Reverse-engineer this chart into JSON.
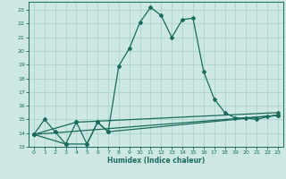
{
  "xlabel": "Humidex (Indice chaleur)",
  "background_color": "#cde8e4",
  "grid_color": "#aad4cc",
  "line_color": "#1a6b5a",
  "xlim": [
    -0.5,
    23.5
  ],
  "ylim": [
    13,
    23.6
  ],
  "xticks": [
    0,
    1,
    2,
    3,
    4,
    5,
    6,
    7,
    8,
    9,
    10,
    11,
    12,
    13,
    14,
    15,
    16,
    17,
    18,
    19,
    20,
    21,
    22,
    23
  ],
  "yticks": [
    13,
    14,
    15,
    16,
    17,
    18,
    19,
    20,
    21,
    22,
    23
  ],
  "series": [
    [
      0,
      13.9
    ],
    [
      1,
      15.0
    ],
    [
      2,
      14.1
    ],
    [
      3,
      13.2
    ],
    [
      4,
      14.8
    ],
    [
      5,
      13.2
    ],
    [
      6,
      14.8
    ],
    [
      7,
      14.1
    ],
    [
      8,
      18.9
    ],
    [
      9,
      20.2
    ],
    [
      10,
      22.1
    ],
    [
      11,
      23.2
    ],
    [
      12,
      22.6
    ],
    [
      13,
      21.0
    ],
    [
      14,
      22.3
    ],
    [
      15,
      22.4
    ],
    [
      16,
      18.5
    ],
    [
      17,
      16.5
    ],
    [
      18,
      15.5
    ],
    [
      19,
      15.1
    ],
    [
      20,
      15.1
    ],
    [
      21,
      15.0
    ],
    [
      22,
      15.2
    ],
    [
      23,
      15.3
    ]
  ],
  "line2": [
    [
      0,
      13.9
    ],
    [
      23,
      15.3
    ]
  ],
  "line3": [
    [
      0,
      13.9
    ],
    [
      4,
      14.8
    ],
    [
      23,
      15.5
    ]
  ],
  "line4": [
    [
      0,
      13.9
    ],
    [
      3,
      13.2
    ],
    [
      5,
      13.2
    ],
    [
      6,
      14.8
    ],
    [
      7,
      14.1
    ],
    [
      23,
      15.3
    ]
  ]
}
